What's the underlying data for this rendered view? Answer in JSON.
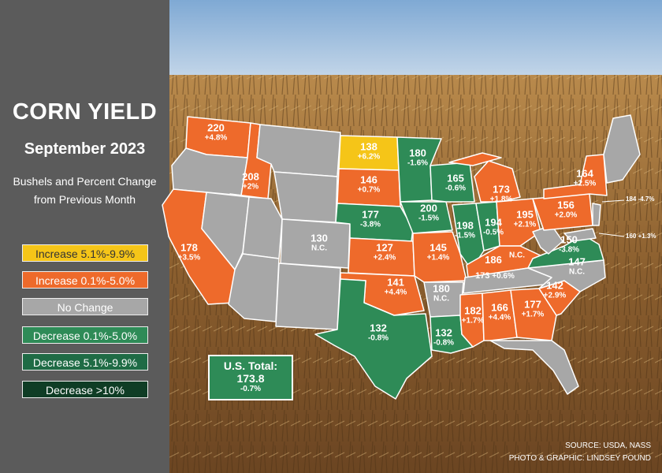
{
  "title": "CORN YIELD",
  "subtitle": "September 2023",
  "description_line1": "Bushels and Percent Change",
  "description_line2": "from Previous Month",
  "colors": {
    "increase_high": "#f5c518",
    "increase_low": "#ee6a2b",
    "no_change": "#a7a7a7",
    "decrease_low": "#2e8b57",
    "decrease_mid": "#1f6b45",
    "decrease_high": "#0f3d25",
    "panel": "#5b5b5b"
  },
  "legend": [
    {
      "label": "Increase 5.1%-9.9%",
      "color": "#f5c518",
      "text_color": "#333333"
    },
    {
      "label": "Increase 0.1%-5.0%",
      "color": "#ee6a2b",
      "text_color": "#ffffff"
    },
    {
      "label": "No Change",
      "color": "#a7a7a7",
      "text_color": "#ffffff"
    },
    {
      "label": "Decrease 0.1%-5.0%",
      "color": "#2e8b57",
      "text_color": "#ffffff"
    },
    {
      "label": "Decrease 5.1%-9.9%",
      "color": "#1f6b45",
      "text_color": "#ffffff"
    },
    {
      "label": "Decrease >10%",
      "color": "#0f3d25",
      "text_color": "#ffffff"
    }
  ],
  "states": [
    {
      "id": "WA",
      "value": "220",
      "change": "+4.8%"
    },
    {
      "id": "OR",
      "value": "",
      "change": ""
    },
    {
      "id": "ID",
      "value": "208",
      "change": "+2%"
    },
    {
      "id": "CA",
      "value": "178",
      "change": "+3.5%"
    },
    {
      "id": "ND",
      "value": "138",
      "change": "+6.2%"
    },
    {
      "id": "SD",
      "value": "146",
      "change": "+0.7%"
    },
    {
      "id": "NE",
      "value": "177",
      "change": "-3.8%"
    },
    {
      "id": "KS",
      "value": "127",
      "change": "+2.4%"
    },
    {
      "id": "CO",
      "value": "130",
      "change": "N.C."
    },
    {
      "id": "OK",
      "value": "",
      "change": ""
    },
    {
      "id": "TX",
      "value": "132",
      "change": "-0.8%"
    },
    {
      "id": "MN",
      "value": "180",
      "change": "-1.6%"
    },
    {
      "id": "IA",
      "value": "200",
      "change": "-1.5%"
    },
    {
      "id": "MO",
      "value": "145",
      "change": "+1.4%"
    },
    {
      "id": "AR",
      "value": "180",
      "change": "N.C."
    },
    {
      "id": "LA",
      "value": "132",
      "change": "-0.8%"
    },
    {
      "id": "WI",
      "value": "165",
      "change": "-0.6%"
    },
    {
      "id": "IL",
      "value": "198",
      "change": "-1.5%"
    },
    {
      "id": "IN",
      "value": "194",
      "change": "-0.5%"
    },
    {
      "id": "MI",
      "value": "173",
      "change": "+1.8%"
    },
    {
      "id": "OH",
      "value": "195",
      "change": "+2.1%"
    },
    {
      "id": "KY",
      "value": "173",
      "change": "+0.6%"
    },
    {
      "id": "TN",
      "value": "186",
      "change": "N.C."
    },
    {
      "id": "MS",
      "value": "182",
      "change": "+1.7%"
    },
    {
      "id": "AL",
      "value": "166",
      "change": "+4.4%"
    },
    {
      "id": "GA",
      "value": "177",
      "change": "+1.7%"
    },
    {
      "id": "SC",
      "value": "142",
      "change": "+2.9%"
    },
    {
      "id": "NC",
      "value": "147",
      "change": "N.C."
    },
    {
      "id": "VA",
      "value": "150",
      "change": "-3.8%"
    },
    {
      "id": "WV",
      "value": "",
      "change": "N.C."
    },
    {
      "id": "PA",
      "value": "156",
      "change": "+2.0%"
    },
    {
      "id": "NY",
      "value": "164",
      "change": "+2.5%"
    },
    {
      "id": "OK2",
      "value": "141",
      "change": "+4.4%"
    }
  ],
  "side_labels": [
    {
      "value": "184",
      "change": "-4.7%"
    },
    {
      "value": "160",
      "change": "+1.3%"
    }
  ],
  "total": {
    "label": "U.S. Total:",
    "value": "173.8",
    "change": "-0.7%"
  },
  "source": "SOURCE: USDA, NASS",
  "credit": "PHOTO & GRAPHIC: LINDSEY POUND"
}
